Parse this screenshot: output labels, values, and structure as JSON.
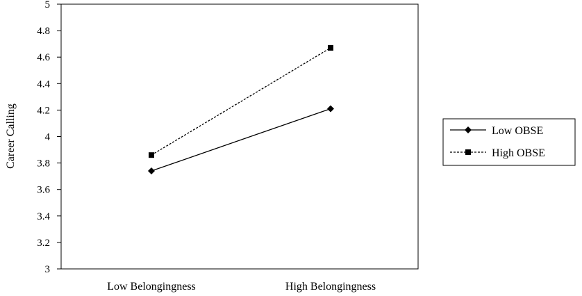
{
  "chart_data": {
    "type": "line",
    "categories": [
      "Low Belongingness",
      "High Belongingness"
    ],
    "series": [
      {
        "name": "Low OBSE",
        "values": [
          3.74,
          4.21
        ],
        "marker": "diamond",
        "line_style": "solid",
        "color": "#000000"
      },
      {
        "name": "High OBSE",
        "values": [
          3.86,
          4.67
        ],
        "marker": "square",
        "line_style": "dashed",
        "color": "#000000"
      }
    ],
    "title": "",
    "xlabel": "",
    "ylabel": "Career Calling",
    "ylim": [
      3,
      5
    ],
    "yticks": [
      "3",
      "3.2",
      "3.4",
      "3.6",
      "3.8",
      "4",
      "4.2",
      "4.4",
      "4.6",
      "4.8",
      "5"
    ],
    "grid": false,
    "legend_position": "right"
  }
}
